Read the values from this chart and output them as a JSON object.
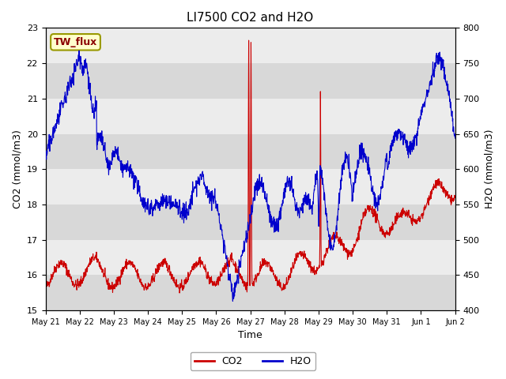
{
  "title": "LI7500 CO2 and H2O",
  "xlabel": "Time",
  "ylabel_left": "CO2 (mmol/m3)",
  "ylabel_right": "H2O (mmol/m3)",
  "ylim_left": [
    15.0,
    23.0
  ],
  "ylim_right": [
    400,
    800
  ],
  "annotation_text": "TW_flux",
  "bg_color": "#e0e0e0",
  "band_color_light": "#ececec",
  "band_color_dark": "#d8d8d8",
  "co2_color": "#cc0000",
  "h2o_color": "#0000cc",
  "legend_co2": "CO2",
  "legend_h2o": "H2O",
  "x_tick_labels": [
    "May 21",
    "May 22",
    "May 23",
    "May 24",
    "May 25",
    "May 26",
    "May 27",
    "May 28",
    "May 29",
    "May 30",
    "May 31",
    "Jun 1",
    "Jun 2"
  ],
  "num_points": 1440,
  "fig_width": 6.4,
  "fig_height": 4.8,
  "dpi": 100
}
